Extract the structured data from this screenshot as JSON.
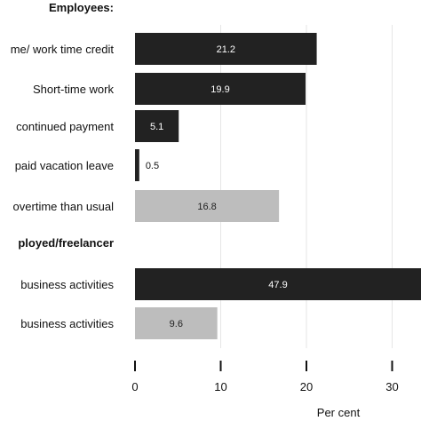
{
  "chart_data": {
    "type": "bar",
    "orientation": "horizontal",
    "xlabel": "Per cent",
    "xlim": [
      0,
      33
    ],
    "xticks": [
      0,
      10,
      20,
      30
    ],
    "grid": true,
    "groups": [
      "Employees:",
      "ployed/freelancer"
    ],
    "rows": [
      {
        "kind": "header",
        "label": "Employees:"
      },
      {
        "kind": "bar",
        "label": "me/ work time credit",
        "value": 21.2,
        "value_label": "21.2",
        "color": "#222222"
      },
      {
        "kind": "bar",
        "label": "Short-time work",
        "value": 19.9,
        "value_label": "19.9",
        "color": "#222222"
      },
      {
        "kind": "bar",
        "label": "continued payment",
        "value": 5.1,
        "value_label": "5.1",
        "color": "#222222"
      },
      {
        "kind": "bar",
        "label": "paid vacation leave",
        "value": 0.5,
        "value_label": "0.5",
        "color": "#222222"
      },
      {
        "kind": "bar",
        "label": "overtime than usual",
        "value": 16.8,
        "value_label": "16.8",
        "color": "#bdbdbd"
      },
      {
        "kind": "header",
        "label": "ployed/freelancer"
      },
      {
        "kind": "bar",
        "label": "business activities",
        "value": 47.9,
        "value_label": "47.9",
        "color": "#222222"
      },
      {
        "kind": "bar",
        "label": "business activities",
        "value": 9.6,
        "value_label": "9.6",
        "color": "#bdbdbd"
      }
    ]
  }
}
